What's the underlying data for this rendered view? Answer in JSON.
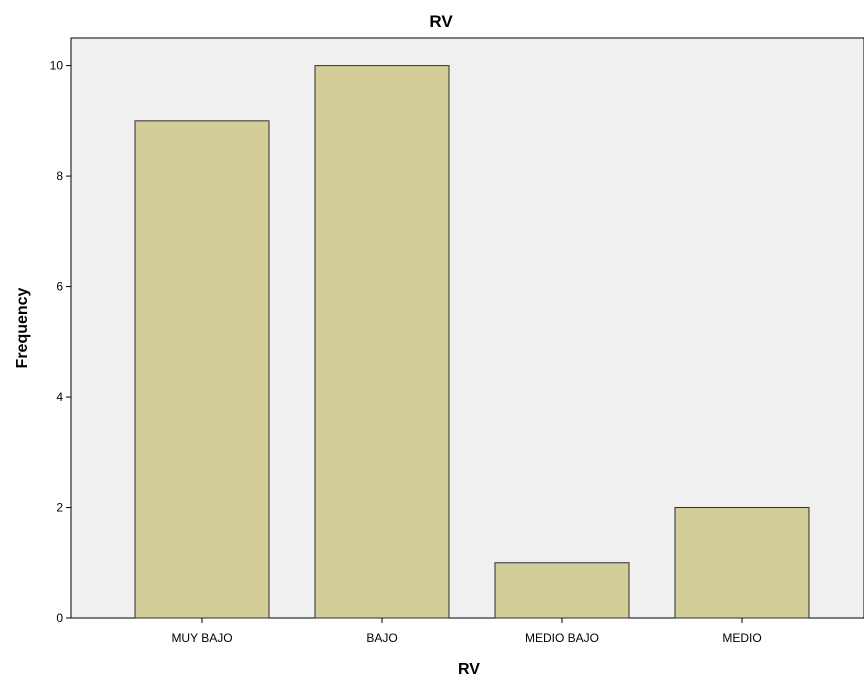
{
  "chart_data": {
    "type": "bar",
    "title": "RV",
    "xlabel": "RV",
    "ylabel": "Frequency",
    "categories": [
      "MUY BAJO",
      "BAJO",
      "MEDIO BAJO",
      "MEDIO"
    ],
    "values": [
      9,
      10,
      1,
      2
    ],
    "ylim": [
      0,
      10.5
    ],
    "yticks": [
      0,
      2,
      4,
      6,
      8,
      10
    ],
    "grid": false,
    "colors": {
      "bar_fill": "#d3ce98",
      "bar_stroke": "#2b2b2b",
      "plot_background": "#f0f0f0",
      "axis": "#000000"
    }
  }
}
